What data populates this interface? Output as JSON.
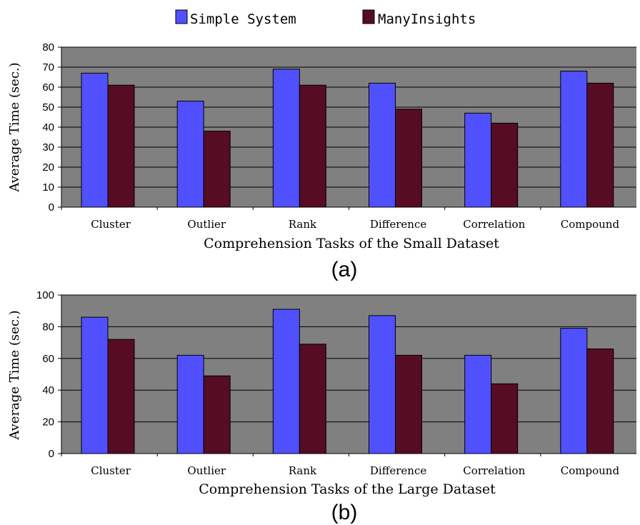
{
  "legend": {
    "items": [
      {
        "label": "Simple System",
        "color": "#5050ff"
      },
      {
        "label": "ManyInsights",
        "color": "#560c22"
      }
    ]
  },
  "colors": {
    "plot_bg": "#808080",
    "gridline": "#000000"
  },
  "chart_data": [
    {
      "type": "bar",
      "panel_label": "(a)",
      "title": "",
      "xlabel": "Comprehension Tasks of the Small Dataset",
      "ylabel": "Average Time (sec.)",
      "ylim": [
        0,
        80
      ],
      "yticks": [
        0,
        10,
        20,
        30,
        40,
        50,
        60,
        70,
        80
      ],
      "grid": true,
      "legend_position": "top-center",
      "categories": [
        "Cluster",
        "Outlier",
        "Rank",
        "Difference",
        "Correlation",
        "Compound"
      ],
      "series": [
        {
          "name": "Simple System",
          "values": [
            67,
            53,
            69,
            62,
            47,
            68
          ]
        },
        {
          "name": "ManyInsights",
          "values": [
            61,
            38,
            61,
            49,
            42,
            62
          ]
        }
      ]
    },
    {
      "type": "bar",
      "panel_label": "(b)",
      "title": "",
      "xlabel": "Comprehension Tasks of the Large Dataset",
      "ylabel": "Average Time (sec.)",
      "ylim": [
        0,
        100
      ],
      "yticks": [
        0,
        20,
        40,
        60,
        80,
        100
      ],
      "grid": true,
      "legend_position": "top-center",
      "categories": [
        "Cluster",
        "Outlier",
        "Rank",
        "Difference",
        "Correlation",
        "Compound"
      ],
      "series": [
        {
          "name": "Simple System",
          "values": [
            86,
            62,
            91,
            87,
            62,
            79
          ]
        },
        {
          "name": "ManyInsights",
          "values": [
            72,
            49,
            69,
            62,
            44,
            66
          ]
        }
      ]
    }
  ]
}
